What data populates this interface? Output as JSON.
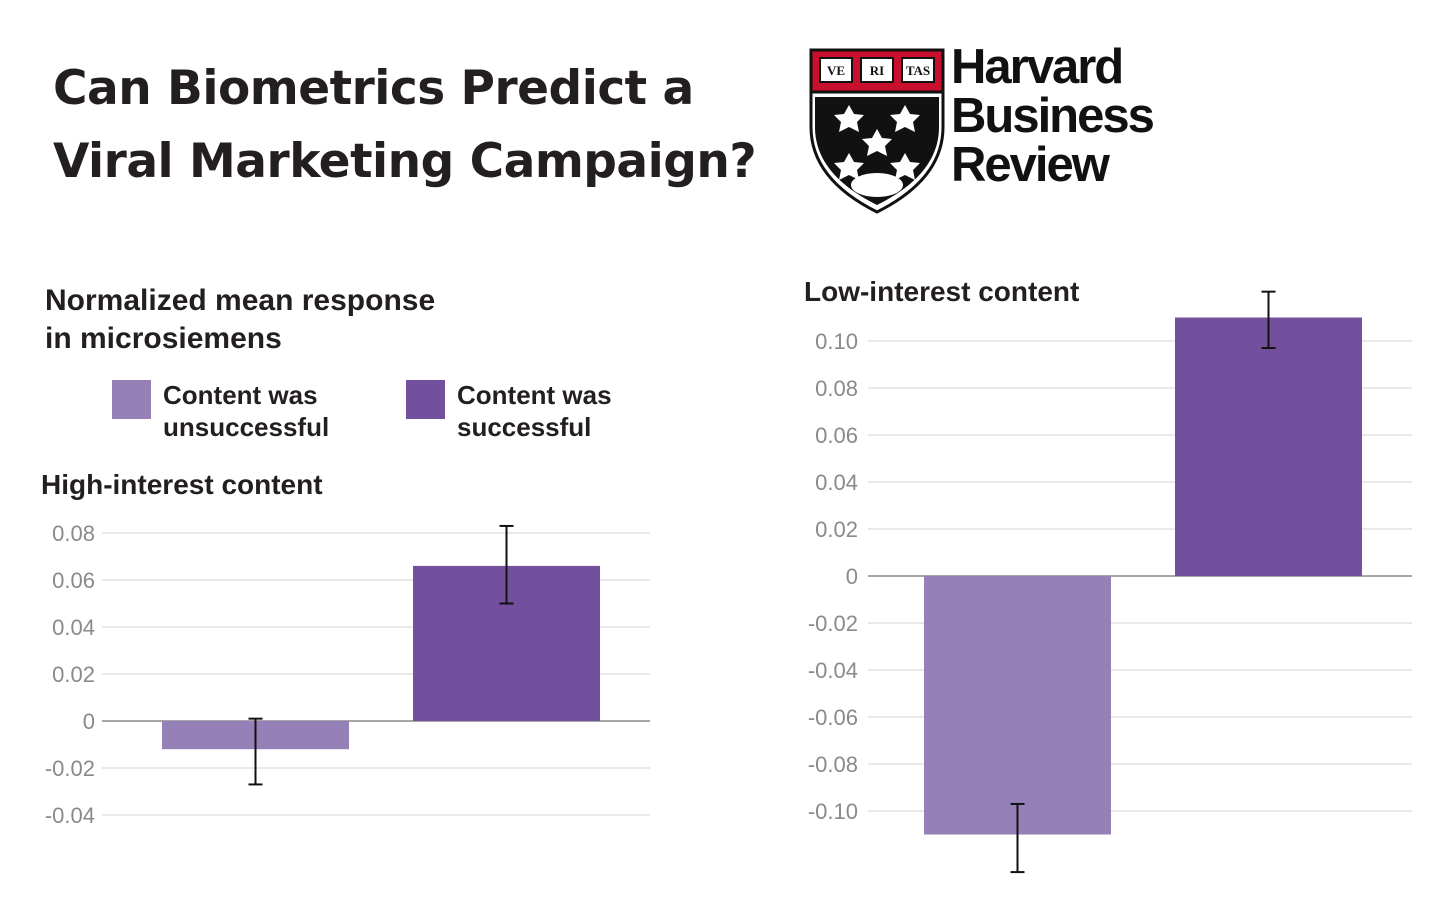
{
  "headline": {
    "line1": "Can Biometrics Predict a",
    "line2": "Viral Marketing Campaign?"
  },
  "logo": {
    "line1": "Harvard",
    "line2": "Business",
    "line3": "Review",
    "motto": [
      "VE",
      "RI",
      "TAS"
    ]
  },
  "units": {
    "line1": "Normalized mean response",
    "line2": "in microsiemens"
  },
  "legend": [
    {
      "label": "Content was unsuccessful",
      "color": "#9580b8"
    },
    {
      "label": "Content was successful",
      "color": "#73509e"
    }
  ],
  "colors": {
    "unsuccessful": "#9580b8",
    "successful": "#73509e",
    "grid": "#d3d3d3",
    "axis": "#8a8a8a",
    "error": "#111111"
  },
  "chart_data": [
    {
      "type": "bar",
      "title": "High-interest content",
      "categories": [
        "Content was unsuccessful",
        "Content was successful"
      ],
      "values": [
        -0.012,
        0.066
      ],
      "error_low": [
        -0.027,
        0.05
      ],
      "error_high": [
        0.001,
        0.083
      ],
      "ylim": [
        -0.04,
        0.08
      ],
      "yticks": [
        0.08,
        0.06,
        0.04,
        0.02,
        0,
        -0.02,
        -0.04
      ],
      "ytick_labels": [
        "0.08",
        "0.06",
        "0.04",
        "0.02",
        "0",
        "-0.02",
        "-0.04"
      ],
      "grid": true
    },
    {
      "type": "bar",
      "title": "Low-interest content",
      "categories": [
        "Content was unsuccessful",
        "Content was successful"
      ],
      "values": [
        -0.11,
        0.11
      ],
      "error_low": [
        -0.126,
        0.097
      ],
      "error_high": [
        -0.097,
        0.121
      ],
      "ylim": [
        -0.1,
        0.1
      ],
      "yticks": [
        0.1,
        0.08,
        0.06,
        0.04,
        0.02,
        0,
        -0.02,
        -0.04,
        -0.06,
        -0.08,
        -0.1
      ],
      "ytick_labels": [
        "0.10",
        "0.08",
        "0.06",
        "0.04",
        "0.02",
        "0",
        "-0.02",
        "-0.04",
        "-0.06",
        "-0.08",
        "-0.10"
      ],
      "grid": true
    }
  ]
}
